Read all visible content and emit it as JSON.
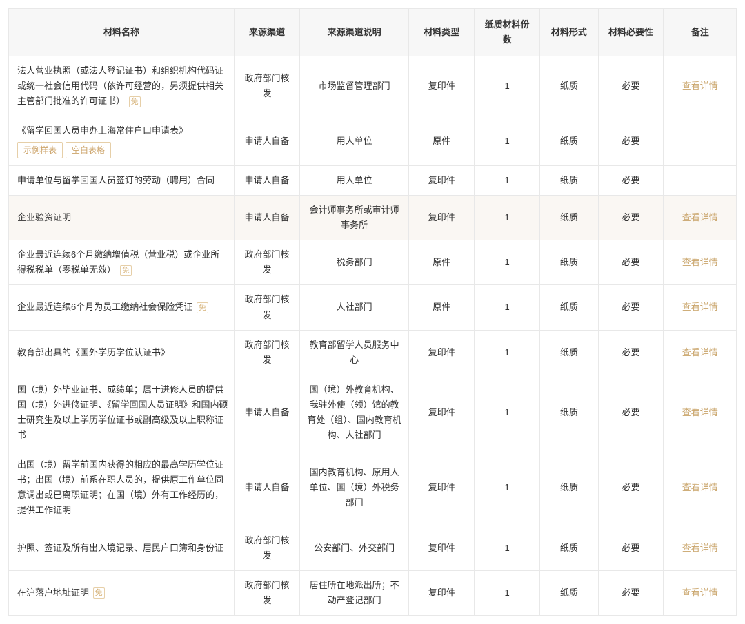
{
  "columns": [
    "材料名称",
    "来源渠道",
    "来源渠道说明",
    "材料类型",
    "纸质材料份数",
    "材料形式",
    "材料必要性",
    "备注"
  ],
  "detail_label": "查看详情",
  "badge_text": "免",
  "pills": {
    "sample": "示例样表",
    "blank": "空白表格"
  },
  "colors": {
    "border": "#e8e8e8",
    "header_bg": "#f7f7f7",
    "highlight_bg": "#faf7f3",
    "link": "#c9a46a",
    "badge_border": "#e6cfa8",
    "text": "#333333"
  },
  "rows": [
    {
      "name": "法人营业执照（或法人登记证书）和组织机构代码证或统一社会信用代码（依许可经营的，另须提供相关主管部门批准的许可证书）",
      "badge": true,
      "source": "政府部门核发",
      "source_desc": "市场监督管理部门",
      "type": "复印件",
      "count": "1",
      "form": "纸质",
      "need": "必要",
      "detail": true,
      "highlight": false,
      "pills": false
    },
    {
      "name": "《留学回国人员申办上海常住户口申请表》",
      "badge": false,
      "source": "申请人自备",
      "source_desc": "用人单位",
      "type": "原件",
      "count": "1",
      "form": "纸质",
      "need": "必要",
      "detail": false,
      "highlight": false,
      "pills": true
    },
    {
      "name": "申请单位与留学回国人员签订的劳动（聘用）合同",
      "badge": false,
      "source": "申请人自备",
      "source_desc": "用人单位",
      "type": "复印件",
      "count": "1",
      "form": "纸质",
      "need": "必要",
      "detail": false,
      "highlight": false,
      "pills": false
    },
    {
      "name": "企业验资证明",
      "badge": false,
      "source": "申请人自备",
      "source_desc": "会计师事务所或审计师事务所",
      "type": "复印件",
      "count": "1",
      "form": "纸质",
      "need": "必要",
      "detail": true,
      "highlight": true,
      "pills": false
    },
    {
      "name": "企业最近连续6个月缴纳增值税（营业税）或企业所得税税单（零税单无效）",
      "badge": true,
      "source": "政府部门核发",
      "source_desc": "税务部门",
      "type": "原件",
      "count": "1",
      "form": "纸质",
      "need": "必要",
      "detail": true,
      "highlight": false,
      "pills": false
    },
    {
      "name": "企业最近连续6个月为员工缴纳社会保险凭证",
      "badge": true,
      "source": "政府部门核发",
      "source_desc": "人社部门",
      "type": "原件",
      "count": "1",
      "form": "纸质",
      "need": "必要",
      "detail": true,
      "highlight": false,
      "pills": false
    },
    {
      "name": "教育部出具的《国外学历学位认证书》",
      "badge": false,
      "source": "政府部门核发",
      "source_desc": "教育部留学人员服务中心",
      "type": "复印件",
      "count": "1",
      "form": "纸质",
      "need": "必要",
      "detail": true,
      "highlight": false,
      "pills": false
    },
    {
      "name": "国（境）外毕业证书、成绩单；属于进修人员的提供国（境）外进修证明、《留学回国人员证明》和国内硕士研究生及以上学历学位证书或副高级及以上职称证书",
      "badge": false,
      "source": "申请人自备",
      "source_desc": "国（境）外教育机构、我驻外使（领）馆的教育处（组）、国内教育机构、人社部门",
      "type": "复印件",
      "count": "1",
      "form": "纸质",
      "need": "必要",
      "detail": true,
      "highlight": false,
      "pills": false
    },
    {
      "name": "出国（境）留学前国内获得的相应的最高学历学位证书；出国（境）前系在职人员的，提供原工作单位同意调出或已离职证明；在国（境）外有工作经历的，提供工作证明",
      "badge": false,
      "source": "申请人自备",
      "source_desc": "国内教育机构、原用人单位、国（境）外税务部门",
      "type": "复印件",
      "count": "1",
      "form": "纸质",
      "need": "必要",
      "detail": true,
      "highlight": false,
      "pills": false
    },
    {
      "name": "护照、签证及所有出入境记录、居民户口簿和身份证",
      "badge": false,
      "source": "政府部门核发",
      "source_desc": "公安部门、外交部门",
      "type": "复印件",
      "count": "1",
      "form": "纸质",
      "need": "必要",
      "detail": true,
      "highlight": false,
      "pills": false
    },
    {
      "name": "在沪落户地址证明",
      "badge": true,
      "source": "政府部门核发",
      "source_desc": "居住所在地派出所；不动产登记部门",
      "type": "复印件",
      "count": "1",
      "form": "纸质",
      "need": "必要",
      "detail": true,
      "highlight": false,
      "pills": false
    }
  ]
}
